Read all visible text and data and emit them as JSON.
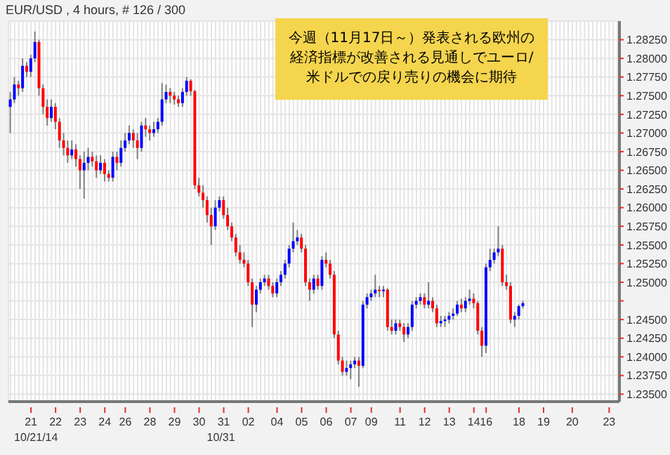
{
  "chart_data": {
    "type": "candlestick",
    "title": "EUR/USD , 4 hours, # 126 / 300",
    "annotations": [
      "今週（11月17日～）発表される欧州の経済指標が改善される見通しでユーロ/米ドルでの戻り売りの機会に期待"
    ],
    "categories": [
      null,
      null,
      null,
      null,
      null,
      "21\n10/21/14",
      null,
      null,
      null,
      null,
      null,
      "22",
      null,
      null,
      null,
      null,
      null,
      "23",
      null,
      null,
      null,
      null,
      null,
      "24",
      null,
      null,
      null,
      null,
      "26",
      null,
      null,
      null,
      null,
      null,
      "28",
      null,
      null,
      null,
      null,
      null,
      "29",
      null,
      null,
      null,
      null,
      null,
      "30",
      null,
      null,
      null,
      null,
      null,
      "31\n10/31",
      null,
      null,
      null,
      null,
      null,
      "02",
      null,
      null,
      null,
      null,
      null,
      null,
      "04",
      null,
      null,
      null,
      null,
      null,
      "05",
      null,
      null,
      null,
      null,
      null,
      "06",
      null,
      null,
      null,
      null,
      null,
      "07",
      null,
      null,
      null,
      null,
      "09",
      null,
      null,
      null,
      null,
      null,
      null,
      "11",
      null,
      null,
      null,
      null,
      null,
      "12",
      null,
      null,
      null,
      null,
      null,
      "13",
      null,
      null,
      null,
      null,
      null,
      "14",
      null,
      null,
      "16",
      null,
      null,
      null,
      null,
      null,
      null,
      null,
      "18",
      null,
      null,
      null,
      null,
      null,
      "19",
      null,
      null,
      null,
      null,
      null,
      null,
      "20",
      null,
      null,
      null,
      null,
      null,
      null,
      null,
      null,
      "23",
      null,
      null
    ],
    "ohlc": [
      [
        1.2735,
        1.2755,
        1.27,
        1.2745
      ],
      [
        1.2745,
        1.2775,
        1.274,
        1.2765
      ],
      [
        1.2765,
        1.277,
        1.275,
        1.276
      ],
      [
        1.276,
        1.28,
        1.2755,
        1.279
      ],
      [
        1.279,
        1.2795,
        1.2775,
        1.2782
      ],
      [
        1.2782,
        1.2805,
        1.2775,
        1.28
      ],
      [
        1.28,
        1.2836,
        1.2795,
        1.2822
      ],
      [
        1.2822,
        1.2825,
        1.275,
        1.276
      ],
      [
        1.276,
        1.2765,
        1.2725,
        1.2735
      ],
      [
        1.2735,
        1.2745,
        1.271,
        1.272
      ],
      [
        1.272,
        1.2745,
        1.2715,
        1.2735
      ],
      [
        1.2735,
        1.274,
        1.2705,
        1.2715
      ],
      [
        1.2715,
        1.272,
        1.268,
        1.269
      ],
      [
        1.269,
        1.27,
        1.267,
        1.268
      ],
      [
        1.268,
        1.269,
        1.266,
        1.267
      ],
      [
        1.267,
        1.269,
        1.2665,
        1.2678
      ],
      [
        1.2678,
        1.2685,
        1.2655,
        1.2665
      ],
      [
        1.2665,
        1.267,
        1.2625,
        1.265
      ],
      [
        1.265,
        1.2675,
        1.2612,
        1.266
      ],
      [
        1.266,
        1.268,
        1.265,
        1.2668
      ],
      [
        1.2668,
        1.2675,
        1.2655,
        1.2662
      ],
      [
        1.2662,
        1.267,
        1.264,
        1.265
      ],
      [
        1.265,
        1.267,
        1.2645,
        1.266
      ],
      [
        1.266,
        1.2665,
        1.2635,
        1.2645
      ],
      [
        1.2645,
        1.265,
        1.2635,
        1.264
      ],
      [
        1.264,
        1.2675,
        1.2635,
        1.2668
      ],
      [
        1.2668,
        1.2675,
        1.265,
        1.266
      ],
      [
        1.266,
        1.269,
        1.2655,
        1.268
      ],
      [
        1.268,
        1.27,
        1.2675,
        1.269
      ],
      [
        1.269,
        1.271,
        1.2685,
        1.27
      ],
      [
        1.27,
        1.2705,
        1.268,
        1.269
      ],
      [
        1.269,
        1.27,
        1.2665,
        1.268
      ],
      [
        1.268,
        1.2715,
        1.2675,
        1.271
      ],
      [
        1.271,
        1.272,
        1.2695,
        1.2705
      ],
      [
        1.2705,
        1.271,
        1.269,
        1.27
      ],
      [
        1.27,
        1.2715,
        1.2695,
        1.2705
      ],
      [
        1.2705,
        1.272,
        1.27,
        1.2715
      ],
      [
        1.2715,
        1.2767,
        1.271,
        1.2745
      ],
      [
        1.2745,
        1.2765,
        1.274,
        1.2755
      ],
      [
        1.2755,
        1.276,
        1.274,
        1.275
      ],
      [
        1.275,
        1.2755,
        1.2738,
        1.2745
      ],
      [
        1.2745,
        1.275,
        1.2735,
        1.274
      ],
      [
        1.274,
        1.276,
        1.2735,
        1.2755
      ],
      [
        1.2755,
        1.2775,
        1.275,
        1.277
      ],
      [
        1.277,
        1.2772,
        1.275,
        1.2756
      ],
      [
        1.2756,
        1.2758,
        1.2625,
        1.263
      ],
      [
        1.263,
        1.264,
        1.2615,
        1.262
      ],
      [
        1.262,
        1.263,
        1.26,
        1.261
      ],
      [
        1.261,
        1.2615,
        1.258,
        1.259
      ],
      [
        1.259,
        1.26,
        1.255,
        1.2575
      ],
      [
        1.2575,
        1.261,
        1.257,
        1.26
      ],
      [
        1.26,
        1.2615,
        1.2595,
        1.261
      ],
      [
        1.261,
        1.2615,
        1.2585,
        1.259
      ],
      [
        1.259,
        1.26,
        1.257,
        1.2575
      ],
      [
        1.2575,
        1.258,
        1.2555,
        1.256
      ],
      [
        1.256,
        1.2565,
        1.2535,
        1.254
      ],
      [
        1.254,
        1.255,
        1.2525,
        1.253
      ],
      [
        1.253,
        1.254,
        1.252,
        1.2525
      ],
      [
        1.2525,
        1.253,
        1.2495,
        1.25
      ],
      [
        1.25,
        1.2505,
        1.244,
        1.247
      ],
      [
        1.247,
        1.2495,
        1.246,
        1.249
      ],
      [
        1.249,
        1.2505,
        1.2485,
        1.25
      ],
      [
        1.25,
        1.251,
        1.2495,
        1.2505
      ],
      [
        1.2505,
        1.251,
        1.249,
        1.2495
      ],
      [
        1.2495,
        1.25,
        1.248,
        1.2485
      ],
      [
        1.2485,
        1.2505,
        1.248,
        1.25
      ],
      [
        1.25,
        1.2515,
        1.2495,
        1.251
      ],
      [
        1.251,
        1.253,
        1.2505,
        1.2525
      ],
      [
        1.2525,
        1.255,
        1.252,
        1.2545
      ],
      [
        1.2545,
        1.258,
        1.254,
        1.2555
      ],
      [
        1.2555,
        1.257,
        1.255,
        1.256
      ],
      [
        1.256,
        1.2565,
        1.254,
        1.2545
      ],
      [
        1.2545,
        1.255,
        1.2495,
        1.25
      ],
      [
        1.25,
        1.2505,
        1.2475,
        1.249
      ],
      [
        1.249,
        1.251,
        1.2485,
        1.2505
      ],
      [
        1.2505,
        1.251,
        1.249,
        1.2495
      ],
      [
        1.2495,
        1.2535,
        1.249,
        1.253
      ],
      [
        1.253,
        1.254,
        1.252,
        1.2525
      ],
      [
        1.2525,
        1.253,
        1.2505,
        1.251
      ],
      [
        1.251,
        1.2515,
        1.2425,
        1.243
      ],
      [
        1.243,
        1.2435,
        1.239,
        1.2395
      ],
      [
        1.2395,
        1.24,
        1.2375,
        1.238
      ],
      [
        1.238,
        1.2395,
        1.2375,
        1.2385
      ],
      [
        1.2385,
        1.2395,
        1.237,
        1.239
      ],
      [
        1.239,
        1.24,
        1.2385,
        1.2395
      ],
      [
        1.2395,
        1.24,
        1.236,
        1.2388
      ],
      [
        1.2388,
        1.2475,
        1.2385,
        1.247
      ],
      [
        1.247,
        1.2485,
        1.2465,
        1.248
      ],
      [
        1.248,
        1.249,
        1.2475,
        1.2485
      ],
      [
        1.2485,
        1.251,
        1.248,
        1.249
      ],
      [
        1.249,
        1.2495,
        1.248,
        1.2488
      ],
      [
        1.2488,
        1.2495,
        1.248,
        1.249
      ],
      [
        1.249,
        1.2492,
        1.2435,
        1.244
      ],
      [
        1.244,
        1.245,
        1.243,
        1.2435
      ],
      [
        1.2435,
        1.245,
        1.243,
        1.2445
      ],
      [
        1.2445,
        1.245,
        1.2435,
        1.244
      ],
      [
        1.244,
        1.2445,
        1.242,
        1.243
      ],
      [
        1.243,
        1.2445,
        1.2425,
        1.244
      ],
      [
        1.244,
        1.2475,
        1.2435,
        1.247
      ],
      [
        1.247,
        1.248,
        1.2465,
        1.2475
      ],
      [
        1.2475,
        1.2485,
        1.247,
        1.248
      ],
      [
        1.248,
        1.2485,
        1.2465,
        1.247
      ],
      [
        1.247,
        1.25,
        1.2465,
        1.2475
      ],
      [
        1.2475,
        1.248,
        1.246,
        1.2465
      ],
      [
        1.2465,
        1.247,
        1.244,
        1.2445
      ],
      [
        1.2445,
        1.2455,
        1.244,
        1.2448
      ],
      [
        1.2448,
        1.2455,
        1.244,
        1.245
      ],
      [
        1.245,
        1.246,
        1.2445,
        1.2455
      ],
      [
        1.2455,
        1.2465,
        1.245,
        1.2458
      ],
      [
        1.2458,
        1.2475,
        1.2455,
        1.247
      ],
      [
        1.247,
        1.2478,
        1.246,
        1.2465
      ],
      [
        1.2465,
        1.248,
        1.246,
        1.2475
      ],
      [
        1.2475,
        1.249,
        1.247,
        1.2478
      ],
      [
        1.2478,
        1.2485,
        1.2465,
        1.2472
      ],
      [
        1.2472,
        1.2475,
        1.243,
        1.2435
      ],
      [
        1.2435,
        1.244,
        1.24,
        1.2415
      ],
      [
        1.2415,
        1.2525,
        1.2405,
        1.252
      ],
      [
        1.252,
        1.2545,
        1.2515,
        1.253
      ],
      [
        1.253,
        1.2545,
        1.2525,
        1.254
      ],
      [
        1.254,
        1.2575,
        1.2535,
        1.2545
      ],
      [
        1.2545,
        1.255,
        1.2495,
        1.25
      ],
      [
        1.25,
        1.251,
        1.249,
        1.2495
      ],
      [
        1.2495,
        1.25,
        1.2445,
        1.245
      ],
      [
        1.245,
        1.246,
        1.244,
        1.2455
      ],
      [
        1.2455,
        1.247,
        1.245,
        1.2468
      ],
      [
        1.2468,
        1.2475,
        1.2465,
        1.2472
      ],
      null,
      null,
      null,
      null,
      null,
      null,
      null,
      null,
      null,
      null,
      null,
      null,
      null,
      null,
      null,
      null,
      null,
      null,
      null,
      null,
      null,
      null,
      null
    ],
    "ylim": [
      1.234,
      1.285
    ],
    "yticks": [
      {
        "value": 1.235,
        "label": "1.23500"
      },
      {
        "value": 1.2375,
        "label": "1.23750"
      },
      {
        "value": 1.24,
        "label": "1.24000"
      },
      {
        "value": 1.2425,
        "label": "1.24250"
      },
      {
        "value": 1.245,
        "label": "1.24500"
      },
      {
        "value": 1.2475,
        "label": null
      },
      {
        "value": 1.25,
        "label": "1.25000"
      },
      {
        "value": 1.2525,
        "label": "1.25250"
      },
      {
        "value": 1.255,
        "label": "1.25500"
      },
      {
        "value": 1.2575,
        "label": "1.25750"
      },
      {
        "value": 1.26,
        "label": "1.26000"
      },
      {
        "value": 1.2625,
        "label": "1.26250"
      },
      {
        "value": 1.265,
        "label": "1.26500"
      },
      {
        "value": 1.2675,
        "label": "1.26750"
      },
      {
        "value": 1.27,
        "label": "1.27000"
      },
      {
        "value": 1.2725,
        "label": "1.27250"
      },
      {
        "value": 1.275,
        "label": "1.27500"
      },
      {
        "value": 1.2775,
        "label": "1.27750"
      },
      {
        "value": 1.28,
        "label": "1.28000"
      },
      {
        "value": 1.2825,
        "label": "1.28250"
      }
    ],
    "grid": true
  }
}
